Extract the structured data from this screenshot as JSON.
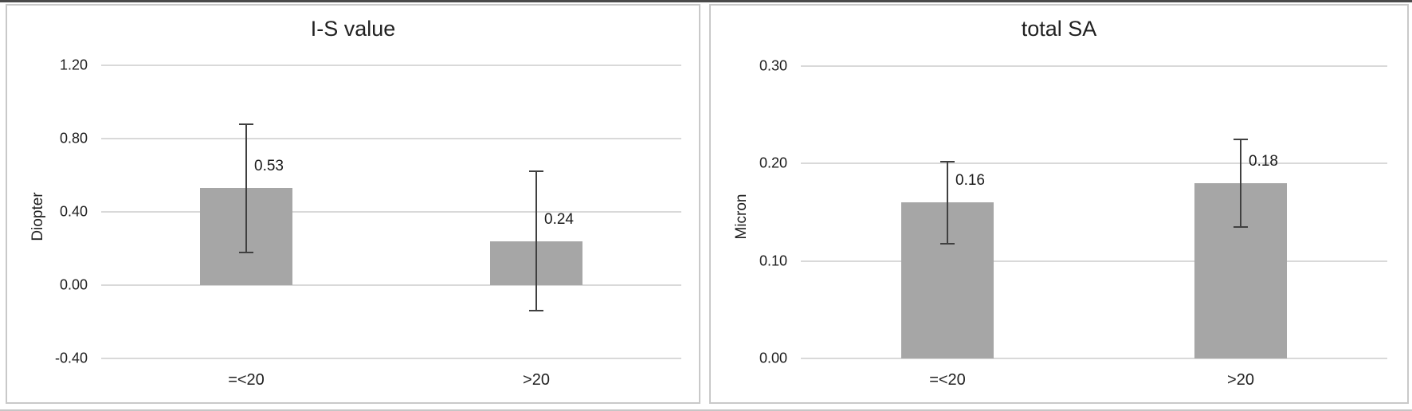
{
  "figure": {
    "background_color": "#ffffff",
    "bar_color": "#a6a6a6",
    "gridline_color": "#d9d9d9",
    "error_bar_color": "#404040",
    "text_color": "#212121",
    "panel_border_color": "#c9c9c9"
  },
  "chart_data": [
    {
      "type": "bar",
      "title": "I-S value",
      "xlabel": "",
      "ylabel": "Diopter",
      "categories": [
        "=<20",
        ">20"
      ],
      "values": [
        0.53,
        0.24
      ],
      "errors": [
        0.35,
        0.38
      ],
      "data_labels": [
        "0.53",
        "0.24"
      ],
      "yticks": [
        "1.20",
        "0.80",
        "0.40",
        "0.00",
        "-0.40"
      ],
      "ylim": [
        -0.4,
        1.2
      ],
      "grid": true,
      "legend": "none"
    },
    {
      "type": "bar",
      "title": "total SA",
      "xlabel": "",
      "ylabel": "Micron",
      "categories": [
        "=<20",
        ">20"
      ],
      "values": [
        0.16,
        0.18
      ],
      "errors": [
        0.042,
        0.045
      ],
      "data_labels": [
        "0.16",
        "0.18"
      ],
      "yticks": [
        "0.30",
        "0.20",
        "0.10",
        "0.00"
      ],
      "ylim": [
        0.0,
        0.3
      ],
      "grid": true,
      "legend": "none"
    }
  ]
}
